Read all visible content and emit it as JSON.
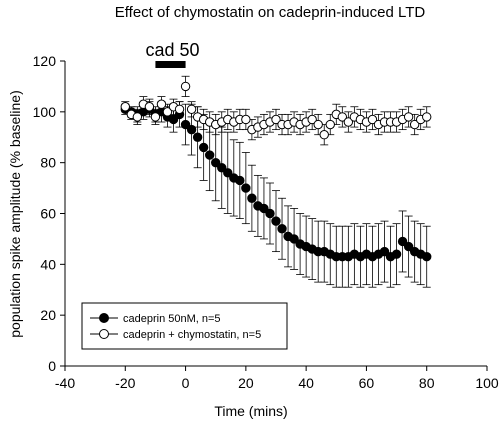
{
  "chart_data": {
    "type": "scatter",
    "title": "Effect of chymostatin on cadeprin-induced LTD",
    "xlabel": "Time (mins)",
    "ylabel": "population spike amplitude (% baseline)",
    "xlim": [
      -40,
      100
    ],
    "ylim": [
      0,
      120
    ],
    "xticks": [
      -40,
      -20,
      0,
      20,
      40,
      60,
      80,
      100
    ],
    "yticks": [
      0,
      20,
      40,
      60,
      80,
      100,
      120
    ],
    "grid": false,
    "legend_position": "bottom-left",
    "annotation": {
      "text": "cad 50",
      "bar_from": -10,
      "bar_to": 0
    },
    "series": [
      {
        "name": "cadeprin 50nM, n=5",
        "marker": "filled-circle",
        "color": "#000000",
        "x": [
          -20,
          -18,
          -16,
          -14,
          -12,
          -10,
          -8,
          -6,
          -4,
          -2,
          0,
          2,
          4,
          6,
          8,
          10,
          12,
          14,
          16,
          18,
          20,
          22,
          24,
          26,
          28,
          30,
          32,
          34,
          36,
          38,
          40,
          42,
          44,
          46,
          48,
          50,
          52,
          54,
          56,
          58,
          60,
          62,
          64,
          66,
          68,
          70,
          72,
          74,
          76,
          78,
          80
        ],
        "y": [
          101,
          100,
          99,
          100,
          101,
          99,
          100,
          98,
          97,
          99,
          95,
          93,
          90,
          86,
          83,
          80,
          78,
          76,
          74,
          73,
          70,
          66,
          63,
          62,
          60,
          57,
          54,
          51,
          50,
          48,
          47,
          46,
          45,
          45,
          44,
          43,
          43,
          43,
          44,
          43,
          44,
          43,
          44,
          45,
          43,
          44,
          49,
          47,
          45,
          44,
          43
        ],
        "err": [
          2,
          2,
          3,
          3,
          3,
          3,
          4,
          4,
          5,
          5,
          8,
          10,
          12,
          13,
          14,
          15,
          16,
          16,
          15,
          15,
          14,
          13,
          12,
          12,
          12,
          12,
          12,
          12,
          12,
          12,
          12,
          12,
          12,
          12,
          12,
          12,
          12,
          12,
          12,
          12,
          12,
          12,
          12,
          12,
          12,
          12,
          12,
          12,
          12,
          12,
          12
        ]
      },
      {
        "name": "cadeprin + chymostatin, n=5",
        "marker": "open-circle",
        "color": "#000000",
        "x": [
          -20,
          -18,
          -16,
          -14,
          -12,
          -10,
          -8,
          -6,
          -4,
          -2,
          0,
          2,
          4,
          6,
          8,
          10,
          12,
          14,
          16,
          18,
          20,
          22,
          24,
          26,
          28,
          30,
          32,
          34,
          36,
          38,
          40,
          42,
          44,
          46,
          48,
          50,
          52,
          54,
          56,
          58,
          60,
          62,
          64,
          66,
          68,
          70,
          72,
          74,
          76,
          78,
          80
        ],
        "y": [
          102,
          99,
          98,
          103,
          102,
          98,
          103,
          100,
          102,
          101,
          110,
          101,
          98,
          97,
          96,
          95,
          96,
          97,
          96,
          97,
          97,
          93,
          94,
          95,
          96,
          97,
          95,
          95,
          96,
          95,
          96,
          97,
          95,
          91,
          95,
          99,
          98,
          96,
          98,
          97,
          96,
          97,
          95,
          96,
          96,
          96,
          97,
          98,
          95,
          97,
          98
        ],
        "err": [
          2,
          2,
          3,
          3,
          3,
          3,
          3,
          3,
          3,
          3,
          4,
          3,
          4,
          4,
          4,
          4,
          4,
          4,
          4,
          4,
          4,
          4,
          4,
          4,
          4,
          4,
          4,
          4,
          4,
          4,
          4,
          4,
          4,
          4,
          4,
          4,
          4,
          4,
          4,
          4,
          4,
          4,
          4,
          4,
          4,
          4,
          4,
          4,
          4,
          4,
          4
        ]
      }
    ]
  }
}
